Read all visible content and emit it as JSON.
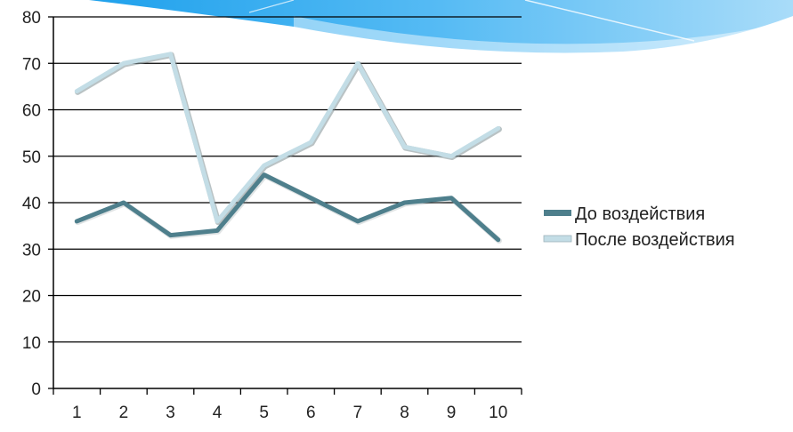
{
  "chart_data": {
    "type": "line",
    "categories": [
      "1",
      "2",
      "3",
      "4",
      "5",
      "6",
      "7",
      "8",
      "9",
      "10"
    ],
    "ylim": [
      0,
      80
    ],
    "yticks": [
      0,
      10,
      20,
      30,
      40,
      50,
      60,
      70,
      80
    ],
    "grid": true,
    "legend_position": "right",
    "series": [
      {
        "name": "До воздействия",
        "color": "#4e7f8c",
        "values": [
          36,
          40,
          33,
          34,
          46,
          41,
          36,
          40,
          41,
          32
        ]
      },
      {
        "name": "После воздействия",
        "color": "#c3dde6",
        "values": [
          64,
          70,
          72,
          36,
          48,
          53,
          70,
          52,
          50,
          56
        ]
      }
    ]
  }
}
